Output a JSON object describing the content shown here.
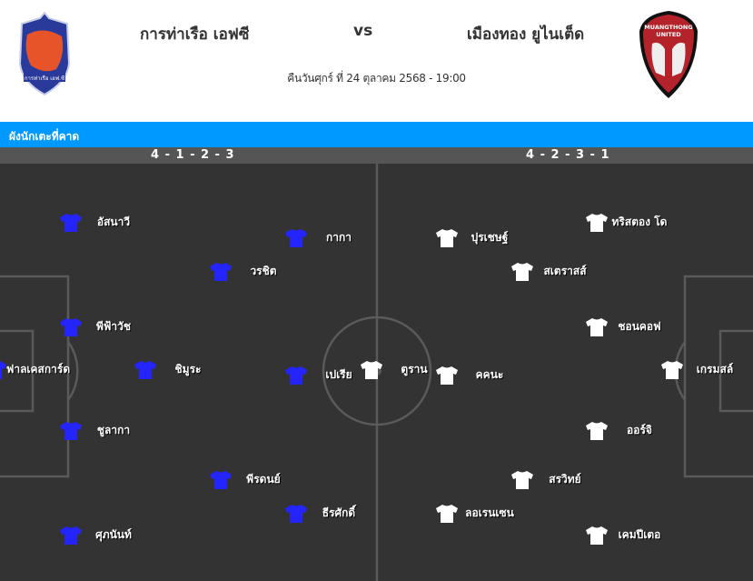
{
  "match": {
    "home_team": "การท่าเรือ เอฟซี",
    "away_team": "เมืองทอง ยูไนเต็ด",
    "vs": "vs",
    "datetime": "คืนวันศุกร์ ที่ 24 ตุลาคม 2568 - 19:00",
    "home_logo_text": "การท่าเรือ เอฟ.ซี",
    "away_logo_text": "MUANGTHONG UNITED"
  },
  "lineup": {
    "title": "ผังนักเตะที่คาด",
    "home_formation": "4 - 1 - 2 - 3",
    "away_formation": "4 - 2 - 3 - 1",
    "home_shirt_color": "#2424ff",
    "away_shirt_color": "#ffffff",
    "home_players": [
      "ฟาลเคสการ์ด",
      "อัสนาวี",
      "พีฟ้าวัช",
      "ชูลากา",
      "ศุภนันท์",
      "ชิมูระ",
      "วรชิต",
      "พีรดนย์",
      "กากา",
      "เปเรีย",
      "ธีรศักดิ์"
    ],
    "away_players": [
      "เกรมสล์",
      "ทริสตอง โด",
      "ชอนคอฟ",
      "ออร์จิ",
      "เคมปีเตอ",
      "สเตราสส์",
      "สรวิทย์",
      "ปุรเชษฐ์",
      "คคนะ",
      "ลอเรนเซน",
      "ตูราน"
    ]
  }
}
